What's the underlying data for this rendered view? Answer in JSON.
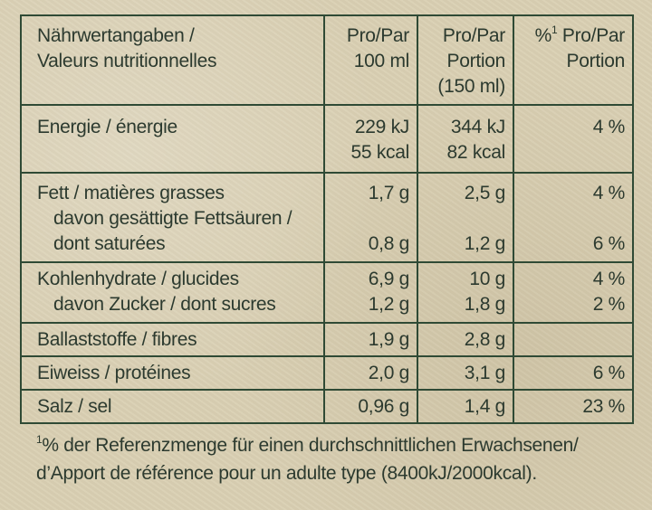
{
  "header": {
    "col1": [
      "Nährwertangaben /",
      "Valeurs nutritionnelles"
    ],
    "col2": [
      "Pro/Par",
      "100 ml"
    ],
    "col3": [
      "Pro/Par",
      "Portion",
      "(150 ml)"
    ],
    "col4_sup": "1",
    "col4_line1_prefix": "%",
    "col4_line1_rest": " Pro/Par",
    "col4_line2": "Portion"
  },
  "rows": [
    {
      "label": [
        "Energie / énergie"
      ],
      "per100": [
        "229 kJ",
        "55 kcal"
      ],
      "portion": [
        "344 kJ",
        "82 kcal"
      ],
      "percent": [
        "4 %"
      ]
    },
    {
      "label": [
        "Fett / matières grasses",
        "davon gesättigte Fettsäuren /",
        "dont saturées"
      ],
      "per100": [
        "1,7 g",
        "",
        "0,8 g"
      ],
      "portion": [
        "2,5 g",
        "",
        "1,2 g"
      ],
      "percent": [
        "4 %",
        "",
        "6 %"
      ]
    },
    {
      "label": [
        "Kohlenhydrate / glucides",
        "davon Zucker / dont sucres"
      ],
      "per100": [
        "6,9 g",
        "1,2 g"
      ],
      "portion": [
        "10 g",
        "1,8 g"
      ],
      "percent": [
        "4 %",
        "2 %"
      ]
    },
    {
      "label": [
        "Ballaststoffe / fibres"
      ],
      "per100": [
        "1,9 g"
      ],
      "portion": [
        "2,8 g"
      ],
      "percent": [
        ""
      ]
    },
    {
      "label": [
        "Eiweiss / protéines"
      ],
      "per100": [
        "2,0 g"
      ],
      "portion": [
        "3,1 g"
      ],
      "percent": [
        "6 %"
      ]
    },
    {
      "label": [
        "Salz / sel"
      ],
      "per100": [
        "0,96 g"
      ],
      "portion": [
        "1,4 g"
      ],
      "percent": [
        "23 %"
      ]
    }
  ],
  "footnote": {
    "sup": "1",
    "line1": "% der Referenzmenge für einen durchschnittlichen Erwachsenen/",
    "line2": "d’Apport de référence pour un adulte type (8400kJ/2000kcal)."
  },
  "colors": {
    "background": "#d9cfb2",
    "ink": "#2c3a2f",
    "rule": "#2f4a35"
  }
}
